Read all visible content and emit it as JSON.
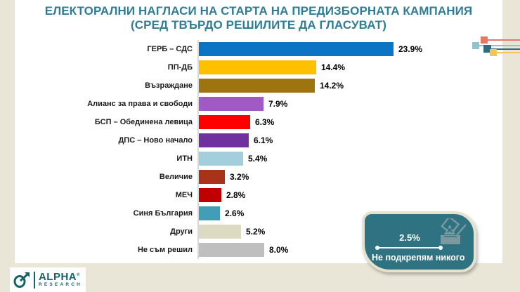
{
  "page": {
    "background_color": "#E9E6D7",
    "card_color": "#FFFFFF"
  },
  "title": {
    "line1": "ЕЛЕКТОРАЛНИ НАГЛАСИ НА СТАРТА НА ПРЕДИЗБОРНАТА КАМПАНИЯ",
    "line2": "(СРЕД ТВЪРДО РЕШИЛИТЕ ДА ГЛАСУВАТ)",
    "color": "#2E7D95"
  },
  "chart_data": {
    "type": "bar",
    "orientation": "horizontal",
    "title": "ЕЛЕКТОРАЛНИ НАГЛАСИ НА СТАРТА НА ПРЕДИЗБОРНАТА КАМПАНИЯ (СРЕД ТВЪРДО РЕШИЛИТЕ ДА ГЛАСУВАТ)",
    "categories": [
      "ГЕРБ – СДС",
      "ПП-ДБ",
      "Възраждане",
      "Алианс за права и свободи",
      "БСП – Обединена левица",
      "ДПС – Ново начало",
      "ИТН",
      "Величие",
      "МЕЧ",
      "Синя България",
      "Други",
      "Не съм решил"
    ],
    "values": [
      23.9,
      14.4,
      14.2,
      7.9,
      6.3,
      6.1,
      5.4,
      3.2,
      2.8,
      2.6,
      5.2,
      8.0
    ],
    "value_labels": [
      "23.9%",
      "14.4%",
      "14.2%",
      "7.9%",
      "6.3%",
      "6.1%",
      "5.4%",
      "3.2%",
      "2.8%",
      "2.6%",
      "5.2%",
      "8.0%"
    ],
    "bar_colors": [
      "#0B74C4",
      "#FFC000",
      "#9E7410",
      "#A159C4",
      "#FF0000",
      "#7030A0",
      "#A3CFDD",
      "#A93318",
      "#C00000",
      "#419EB6",
      "#DCDBC2",
      "#BFBFBF"
    ],
    "xlim": [
      0,
      25.5
    ],
    "grid": false,
    "legend": false,
    "data_labels": true
  },
  "annotation_badge": {
    "value": "2.5%",
    "label": "Не подкрепям никого",
    "background_color": "#2F7383",
    "border_color": "#E5E2CE",
    "icon": "ballot-box-icon"
  },
  "decoration_squares": [
    {
      "name": "salmon",
      "color": "#E97862"
    },
    {
      "name": "light-blue",
      "color": "#8FC3CE"
    },
    {
      "name": "dark-teal",
      "color": "#2C6E7E"
    },
    {
      "name": "yellow",
      "color": "#F6C45A"
    }
  ],
  "logo": {
    "brand": "ALPHA",
    "mark": "®",
    "subtitle": "RESEARCH",
    "color": "#15626C"
  }
}
